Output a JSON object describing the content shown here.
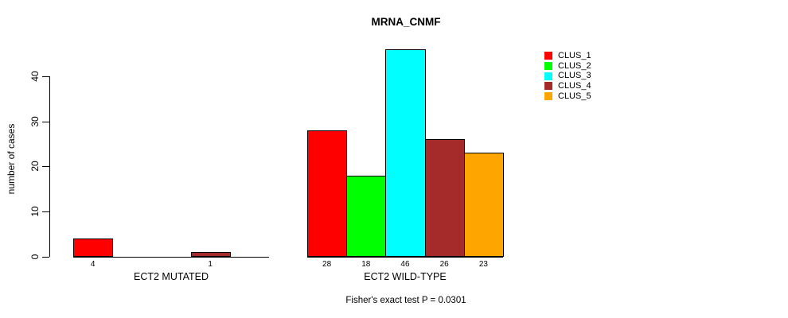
{
  "chart_data": {
    "type": "bar",
    "title": "MRNA_CNMF",
    "ylabel": "number of cases",
    "ylim": [
      0,
      46
    ],
    "yticks": [
      0,
      10,
      20,
      30,
      40
    ],
    "grid": false,
    "legend_position": "right",
    "legend": [
      {
        "label": "CLUS_1",
        "color": "#FF0000"
      },
      {
        "label": "CLUS_2",
        "color": "#00FF00"
      },
      {
        "label": "CLUS_3",
        "color": "#00FFFF"
      },
      {
        "label": "CLUS_4",
        "color": "#A52A2A"
      },
      {
        "label": "CLUS_5",
        "color": "#FFA500"
      }
    ],
    "groups": [
      {
        "label": "ECT2 MUTATED",
        "values": [
          4,
          0,
          0,
          1,
          0
        ]
      },
      {
        "label": "ECT2 WILD-TYPE",
        "values": [
          28,
          18,
          46,
          26,
          23
        ]
      }
    ],
    "bar_value_labels_shown": true,
    "annotation": "Fisher's exact test P = 0.0301"
  }
}
